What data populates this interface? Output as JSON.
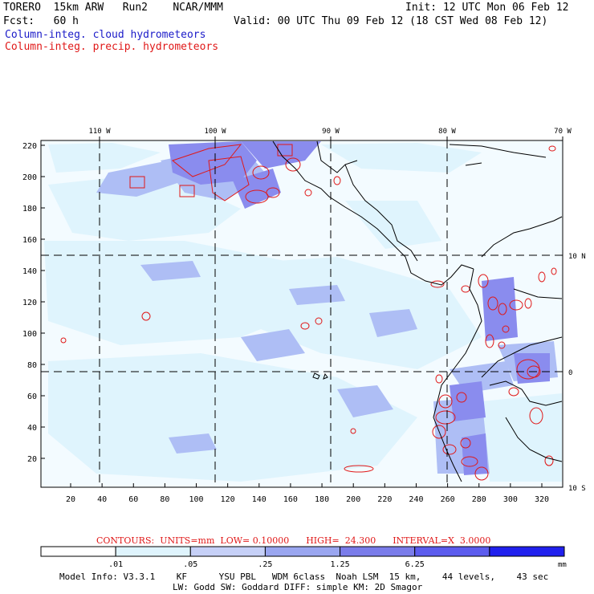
{
  "header": {
    "title_left": "TORERO  15km ARW   Run2    NCAR/MMM",
    "init": "Init: 12 UTC Mon 06 Feb 12",
    "fcst": "Fcst:   60 h",
    "valid": "Valid: 00 UTC Thu 09 Feb 12 (18 CST Wed 08 Feb 12)",
    "legend_cloud": "Column-integ. cloud hydrometeors",
    "legend_precip": "Column-integ. precip. hydrometeors"
  },
  "map": {
    "lon_labels": [
      "110 W",
      "100 W",
      "90 W",
      "80 W",
      "70 W"
    ],
    "lat_labels": [
      "10 N",
      "0",
      "10 S"
    ],
    "y_ticks": [
      "220",
      "200",
      "180",
      "160",
      "140",
      "120",
      "100",
      "80",
      "60",
      "40",
      "20"
    ],
    "x_ticks": [
      "20",
      "40",
      "60",
      "80",
      "100",
      "120",
      "140",
      "160",
      "180",
      "200",
      "220",
      "240",
      "260",
      "280",
      "300",
      "320"
    ],
    "colors": {
      "cloud_lt": "#dff4fd",
      "cloud_md": "#aebef5",
      "cloud_dk": "#8a8cee",
      "precip": "#e01818",
      "land": "#000000"
    }
  },
  "contours_line": "CONTOURS:  UNITS=mm  LOW= 0.10000      HIGH=  24.300      INTERVAL=X  3.0000",
  "colorbar": {
    "labels": [
      ".01",
      ".05",
      ".25",
      "1.25",
      "6.25"
    ],
    "unit": "mm",
    "colors": [
      "#ffffff",
      "#dff4fd",
      "#c6d0f7",
      "#9aa6f0",
      "#7a7cea",
      "#5c5cee",
      "#2020ee"
    ]
  },
  "footer": {
    "line1": "Model Info: V3.3.1    KF      YSU PBL   WDM 6class  Noah LSM  15 km,    44 levels,    43 sec",
    "line2": "LW: Godd SW: Goddard DIFF: simple KM: 2D Smagor"
  }
}
